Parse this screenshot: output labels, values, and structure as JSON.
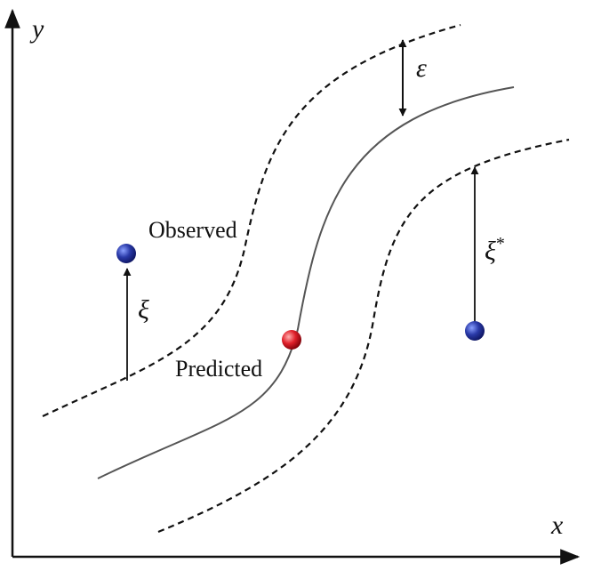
{
  "axes": {
    "x": "x",
    "y": "y"
  },
  "labels": {
    "epsilon": "ε",
    "observed": "Observed",
    "predicted": "Predicted",
    "xi": "ξ",
    "xi_star": {
      "symbol": "ξ",
      "superscript": "*"
    }
  }
}
